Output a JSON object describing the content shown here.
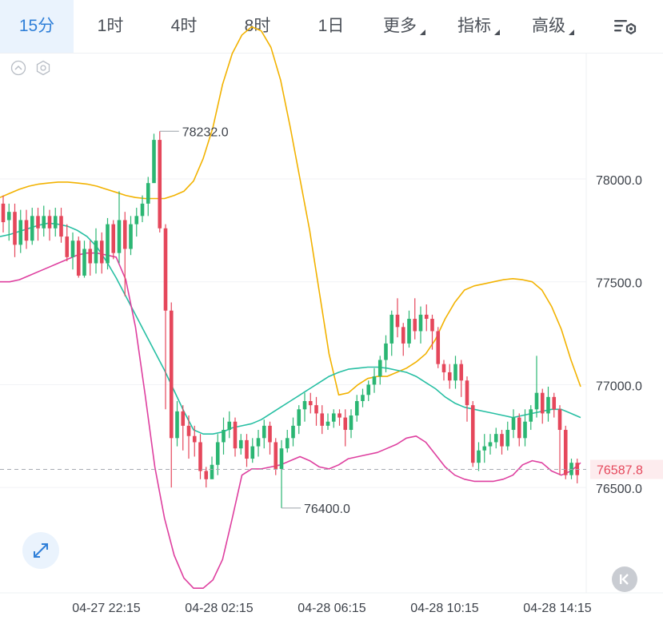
{
  "tabs": [
    {
      "label": "15分",
      "active": true
    },
    {
      "label": "1时"
    },
    {
      "label": "4时"
    },
    {
      "label": "8时"
    },
    {
      "label": "1日"
    },
    {
      "label": "更多",
      "dropdown": true
    },
    {
      "label": "指标",
      "dropdown": true
    },
    {
      "label": "高级",
      "dropdown": true
    }
  ],
  "icons": {
    "settings": "chart-settings-icon",
    "collapse": "chevron-up-icon",
    "indicator": "hexagon-settings-icon",
    "expand": "expand-arrows-icon",
    "back": "skip-back-icon"
  },
  "colors": {
    "up": "#2bb673",
    "down": "#e5475b",
    "boll_upper": "#f2b200",
    "boll_mid": "#27bfa3",
    "boll_lower": "#de3f9f",
    "accent": "#2f7fd8",
    "price_line": "#e5475b"
  },
  "chart_data": {
    "type": "candlestick",
    "interval": "15分",
    "y_ticks": [
      "78000.0",
      "77500.0",
      "77000.0",
      "76500.0"
    ],
    "y_tick_values": [
      78000,
      77500,
      77000,
      76500
    ],
    "x_ticks": [
      "04-27 22:15",
      "04-28 02:15",
      "04-28 06:15",
      "04-28 10:15",
      "04-28 14:15"
    ],
    "current_price": "76587.8",
    "current_value": 76587.8,
    "max_label": "78232.0",
    "min_label": "76400.0",
    "candles": [
      [
        77880,
        77790,
        77920,
        77740
      ],
      [
        77800,
        77840,
        77880,
        77700
      ],
      [
        77840,
        77680,
        77880,
        77620
      ],
      [
        77680,
        77800,
        77850,
        77640
      ],
      [
        77800,
        77700,
        77850,
        77660
      ],
      [
        77700,
        77820,
        77860,
        77680
      ],
      [
        77820,
        77760,
        77860,
        77700
      ],
      [
        77760,
        77820,
        77870,
        77720
      ],
      [
        77820,
        77760,
        77850,
        77700
      ],
      [
        77760,
        77820,
        77860,
        77720
      ],
      [
        77820,
        77720,
        77860,
        77690
      ],
      [
        77720,
        77620,
        77780,
        77600
      ],
      [
        77620,
        77700,
        77740,
        77560
      ],
      [
        77700,
        77530,
        77720,
        77520
      ],
      [
        77530,
        77660,
        77700,
        77520
      ],
      [
        77660,
        77590,
        77700,
        77530
      ],
      [
        77590,
        77700,
        77760,
        77540
      ],
      [
        77700,
        77590,
        77740,
        77540
      ],
      [
        77590,
        77780,
        77810,
        77560
      ],
      [
        77780,
        77640,
        77800,
        77610
      ],
      [
        77640,
        77800,
        77940,
        77590
      ],
      [
        77800,
        77660,
        77840,
        77430
      ],
      [
        77660,
        77780,
        77820,
        77630
      ],
      [
        77780,
        77820,
        77860,
        77720
      ],
      [
        77820,
        77880,
        77920,
        77790
      ],
      [
        77880,
        77980,
        78010,
        77820
      ],
      [
        77980,
        78190,
        78220,
        78000
      ],
      [
        78190,
        77760,
        78232,
        77740
      ],
      [
        77760,
        77360,
        77780,
        76880
      ],
      [
        77360,
        76740,
        77400,
        76500
      ],
      [
        76740,
        76870,
        76920,
        76700
      ],
      [
        76870,
        76800,
        76900,
        76680
      ],
      [
        76800,
        76750,
        76850,
        76640
      ],
      [
        76750,
        76720,
        76800,
        76650
      ],
      [
        76720,
        76580,
        76760,
        76540
      ],
      [
        76580,
        76540,
        76600,
        76500
      ],
      [
        76540,
        76610,
        76650,
        76560
      ],
      [
        76610,
        76720,
        76760,
        76560
      ],
      [
        76720,
        76780,
        76840,
        76660
      ],
      [
        76780,
        76820,
        76870,
        76740
      ],
      [
        76820,
        76690,
        76840,
        76650
      ],
      [
        76690,
        76730,
        76760,
        76660
      ],
      [
        76730,
        76640,
        76760,
        76600
      ],
      [
        76640,
        76700,
        76740,
        76620
      ],
      [
        76700,
        76740,
        76780,
        76650
      ],
      [
        76740,
        76800,
        76830,
        76690
      ],
      [
        76800,
        76720,
        76820,
        76660
      ],
      [
        76720,
        76590,
        76740,
        76560
      ],
      [
        76590,
        76690,
        76730,
        76400
      ],
      [
        76690,
        76740,
        76780,
        76670
      ],
      [
        76740,
        76800,
        76840,
        76700
      ],
      [
        76800,
        76880,
        76900,
        76760
      ],
      [
        76880,
        76920,
        76960,
        76820
      ],
      [
        76920,
        76900,
        76960,
        76860
      ],
      [
        76900,
        76860,
        76940,
        76800
      ],
      [
        76860,
        76800,
        76900,
        76760
      ],
      [
        76800,
        76820,
        76860,
        76780
      ],
      [
        76820,
        76860,
        76880,
        76790
      ],
      [
        76860,
        76840,
        76880,
        76800
      ],
      [
        76840,
        76780,
        76880,
        76700
      ],
      [
        76780,
        76850,
        76880,
        76740
      ],
      [
        76850,
        76920,
        76950,
        76820
      ],
      [
        76920,
        76950,
        76980,
        76890
      ],
      [
        76950,
        77000,
        77020,
        76920
      ],
      [
        77000,
        77040,
        77080,
        76960
      ],
      [
        77040,
        77120,
        77140,
        77000
      ],
      [
        77120,
        77200,
        77240,
        77060
      ],
      [
        77200,
        77340,
        77360,
        77140
      ],
      [
        77340,
        77280,
        77420,
        77230
      ],
      [
        77280,
        77200,
        77300,
        77140
      ],
      [
        77200,
        77320,
        77360,
        77180
      ],
      [
        77320,
        77260,
        77420,
        77220
      ],
      [
        77260,
        77340,
        77380,
        77200
      ],
      [
        77340,
        77320,
        77390,
        77260
      ],
      [
        77320,
        77260,
        77340,
        77170
      ],
      [
        77260,
        77100,
        77280,
        77080
      ],
      [
        77100,
        77060,
        77120,
        77020
      ],
      [
        77060,
        77020,
        77100,
        76980
      ],
      [
        77020,
        77100,
        77140,
        76980
      ],
      [
        77100,
        77020,
        77120,
        76940
      ],
      [
        77020,
        76900,
        77040,
        76820
      ],
      [
        76900,
        76620,
        76920,
        76600
      ],
      [
        76620,
        76680,
        76720,
        76580
      ],
      [
        76680,
        76700,
        76760,
        76620
      ],
      [
        76700,
        76720,
        76760,
        76660
      ],
      [
        76720,
        76760,
        76790,
        76690
      ],
      [
        76760,
        76700,
        76780,
        76660
      ],
      [
        76700,
        76780,
        76820,
        76680
      ],
      [
        76780,
        76840,
        76880,
        76740
      ],
      [
        76840,
        76740,
        76860,
        76700
      ],
      [
        76740,
        76820,
        76880,
        76700
      ],
      [
        76820,
        76880,
        76900,
        76780
      ],
      [
        76880,
        76960,
        77140,
        76840
      ],
      [
        76960,
        76860,
        76980,
        76810
      ],
      [
        76860,
        76940,
        76990,
        76820
      ],
      [
        76940,
        76880,
        76960,
        76840
      ],
      [
        76880,
        76780,
        76900,
        76560
      ],
      [
        76780,
        76560,
        76800,
        76540
      ],
      [
        76560,
        76620,
        76640,
        76540
      ],
      [
        76620,
        76560,
        76640,
        76520
      ]
    ],
    "boll_upper": [
      77910,
      77930,
      77950,
      77965,
      77975,
      77980,
      77985,
      77985,
      77980,
      77975,
      77965,
      77950,
      77935,
      77920,
      77910,
      77905,
      77905,
      77905,
      77920,
      77940,
      77990,
      78100,
      78250,
      78460,
      78610,
      78700,
      78740,
      78720,
      78640,
      78480,
      78250,
      78000,
      77750,
      77450,
      77150,
      76950,
      76960,
      77000,
      77030,
      77040,
      77040,
      77060,
      77080,
      77110,
      77150,
      77220,
      77320,
      77400,
      77460,
      77480,
      77490,
      77500,
      77510,
      77515,
      77510,
      77500,
      77460,
      77380,
      77270,
      77120,
      76990
    ],
    "boll_mid": [
      77720,
      77730,
      77745,
      77760,
      77775,
      77785,
      77780,
      77770,
      77750,
      77720,
      77670,
      77600,
      77520,
      77430,
      77340,
      77250,
      77160,
      77070,
      76970,
      76870,
      76780,
      76760,
      76760,
      76770,
      76790,
      76800,
      76810,
      76830,
      76860,
      76890,
      76920,
      76950,
      76980,
      77010,
      77040,
      77060,
      77075,
      77080,
      77085,
      77085,
      77080,
      77070,
      77060,
      77040,
      77010,
      76980,
      76940,
      76910,
      76890,
      76880,
      76870,
      76860,
      76850,
      76840,
      76850,
      76860,
      76870,
      76880,
      76880,
      76860,
      76840
    ],
    "boll_lower": [
      77500,
      77500,
      77510,
      77530,
      77550,
      77570,
      77590,
      77610,
      77630,
      77640,
      77640,
      77630,
      77620,
      77510,
      77280,
      76950,
      76600,
      76350,
      76170,
      76060,
      76010,
      76010,
      76050,
      76150,
      76350,
      76560,
      76590,
      76590,
      76600,
      76610,
      76630,
      76650,
      76630,
      76600,
      76590,
      76610,
      76640,
      76650,
      76660,
      76670,
      76690,
      76710,
      76740,
      76750,
      76720,
      76660,
      76600,
      76560,
      76540,
      76530,
      76530,
      76530,
      76540,
      76560,
      76610,
      76630,
      76620,
      76580,
      76560,
      76580,
      76620
    ]
  }
}
